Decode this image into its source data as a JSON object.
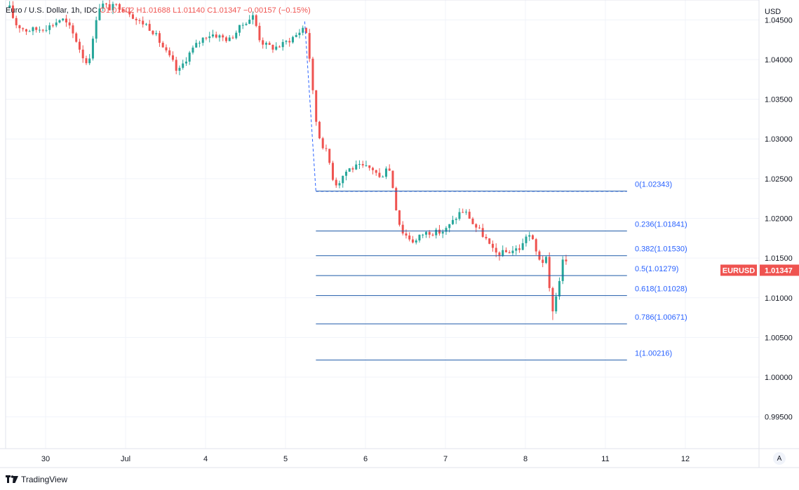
{
  "header": {
    "symbol": "Euro / U.S. Dollar, 1h, IDC",
    "open": "O1.01502",
    "high": "H1.01688",
    "low": "L1.01140",
    "close": "C1.01347",
    "change": "−0.00157 (−0.15%)"
  },
  "footer": {
    "brand": "TradingView"
  },
  "controls": {
    "auto_label": "A"
  },
  "colors": {
    "up": "#26a69a",
    "down": "#ef5350",
    "fib": "#1e5aa8",
    "fib_label": "#2962ff",
    "grid": "#f0f3fa",
    "price_tag": "#ef5350"
  },
  "chart_data": {
    "type": "candlestick",
    "title": "Euro / U.S. Dollar, 1h, IDC",
    "currency_label": "USD",
    "ylim": [
      0.991,
      1.0475
    ],
    "y_ticks": [
      0.995,
      1.0,
      1.005,
      1.01,
      1.015,
      1.02,
      1.025,
      1.03,
      1.035,
      1.04,
      1.045
    ],
    "y_tick_labels": [
      "0.99500",
      "1.00000",
      "1.00500",
      "1.01000",
      "1.01500",
      "1.02000",
      "1.02500",
      "1.03000",
      "1.03500",
      "1.04000",
      "1.04500"
    ],
    "x_ticks": [
      {
        "label": "30",
        "day": 0.5
      },
      {
        "label": "Jul",
        "day": 1.5
      },
      {
        "label": "4",
        "day": 2.5
      },
      {
        "label": "5",
        "day": 3.5
      },
      {
        "label": "6",
        "day": 4.5
      },
      {
        "label": "7",
        "day": 5.5
      },
      {
        "label": "8",
        "day": 6.5
      },
      {
        "label": "11",
        "day": 7.5
      },
      {
        "label": "12",
        "day": 8.5
      }
    ],
    "grid": true,
    "last_price": {
      "symbol": "EURUSD",
      "value": "1.01347",
      "numeric": 1.01347
    },
    "fibonacci": {
      "start": {
        "day": 3.88,
        "price": 1.0234
      },
      "end": {
        "day": 7.77,
        "price": 1.0234
      },
      "trend_from": {
        "day": 3.74,
        "price": 1.0448
      },
      "levels": [
        {
          "ratio": "0",
          "price": 1.02343,
          "label": "0(1.02343)"
        },
        {
          "ratio": "0.236",
          "price": 1.01841,
          "label": "0.236(1.01841)"
        },
        {
          "ratio": "0.382",
          "price": 1.0153,
          "label": "0.382(1.01530)"
        },
        {
          "ratio": "0.5",
          "price": 1.01279,
          "label": "0.5(1.01279)"
        },
        {
          "ratio": "0.618",
          "price": 1.01028,
          "label": "0.618(1.01028)"
        },
        {
          "ratio": "0.786",
          "price": 1.00671,
          "label": "0.786(1.00671)"
        },
        {
          "ratio": "1",
          "price": 1.00216,
          "label": "1(1.00216)"
        }
      ]
    },
    "price_path": [
      {
        "day": 0.05,
        "price": 1.0465
      },
      {
        "day": 0.12,
        "price": 1.0445
      },
      {
        "day": 0.25,
        "price": 1.0437
      },
      {
        "day": 0.4,
        "price": 1.0438
      },
      {
        "day": 0.55,
        "price": 1.0442
      },
      {
        "day": 0.7,
        "price": 1.0452
      },
      {
        "day": 0.8,
        "price": 1.044
      },
      {
        "day": 0.88,
        "price": 1.0425
      },
      {
        "day": 0.96,
        "price": 1.0405
      },
      {
        "day": 1.02,
        "price": 1.0395
      },
      {
        "day": 1.08,
        "price": 1.0415
      },
      {
        "day": 1.12,
        "price": 1.0445
      },
      {
        "day": 1.15,
        "price": 1.0463
      },
      {
        "day": 1.2,
        "price": 1.047
      },
      {
        "day": 1.3,
        "price": 1.0465
      },
      {
        "day": 1.4,
        "price": 1.0468
      },
      {
        "day": 1.55,
        "price": 1.046
      },
      {
        "day": 1.65,
        "price": 1.0448
      },
      {
        "day": 1.75,
        "price": 1.0445
      },
      {
        "day": 1.85,
        "price": 1.0435
      },
      {
        "day": 2.0,
        "price": 1.041
      },
      {
        "day": 2.1,
        "price": 1.0395
      },
      {
        "day": 2.15,
        "price": 1.0382
      },
      {
        "day": 2.22,
        "price": 1.0395
      },
      {
        "day": 2.3,
        "price": 1.0408
      },
      {
        "day": 2.38,
        "price": 1.0418
      },
      {
        "day": 2.5,
        "price": 1.043
      },
      {
        "day": 2.6,
        "price": 1.0432
      },
      {
        "day": 2.7,
        "price": 1.0428
      },
      {
        "day": 2.8,
        "price": 1.0425
      },
      {
        "day": 2.9,
        "price": 1.0437
      },
      {
        "day": 3.0,
        "price": 1.0448
      },
      {
        "day": 3.1,
        "price": 1.0455
      },
      {
        "day": 3.18,
        "price": 1.0425
      },
      {
        "day": 3.25,
        "price": 1.0418
      },
      {
        "day": 3.35,
        "price": 1.0415
      },
      {
        "day": 3.45,
        "price": 1.0418
      },
      {
        "day": 3.55,
        "price": 1.0425
      },
      {
        "day": 3.65,
        "price": 1.0432
      },
      {
        "day": 3.74,
        "price": 1.0443
      },
      {
        "day": 3.78,
        "price": 1.0425
      },
      {
        "day": 3.82,
        "price": 1.038
      },
      {
        "day": 3.86,
        "price": 1.034
      },
      {
        "day": 3.9,
        "price": 1.031
      },
      {
        "day": 3.95,
        "price": 1.0295
      },
      {
        "day": 4.0,
        "price": 1.0287
      },
      {
        "day": 4.05,
        "price": 1.027
      },
      {
        "day": 4.1,
        "price": 1.0248
      },
      {
        "day": 4.15,
        "price": 1.0242
      },
      {
        "day": 4.2,
        "price": 1.0252
      },
      {
        "day": 4.28,
        "price": 1.0262
      },
      {
        "day": 4.4,
        "price": 1.0265
      },
      {
        "day": 4.5,
        "price": 1.0264
      },
      {
        "day": 4.6,
        "price": 1.0262
      },
      {
        "day": 4.68,
        "price": 1.025
      },
      {
        "day": 4.73,
        "price": 1.0258
      },
      {
        "day": 4.77,
        "price": 1.0268
      },
      {
        "day": 4.82,
        "price": 1.0255
      },
      {
        "day": 4.87,
        "price": 1.022
      },
      {
        "day": 4.92,
        "price": 1.0195
      },
      {
        "day": 4.97,
        "price": 1.0182
      },
      {
        "day": 5.05,
        "price": 1.0175
      },
      {
        "day": 5.12,
        "price": 1.017
      },
      {
        "day": 5.2,
        "price": 1.018
      },
      {
        "day": 5.3,
        "price": 1.0183
      },
      {
        "day": 5.4,
        "price": 1.0182
      },
      {
        "day": 5.5,
        "price": 1.0185
      },
      {
        "day": 5.6,
        "price": 1.0197
      },
      {
        "day": 5.7,
        "price": 1.021
      },
      {
        "day": 5.78,
        "price": 1.0205
      },
      {
        "day": 5.85,
        "price": 1.0192
      },
      {
        "day": 5.92,
        "price": 1.0185
      },
      {
        "day": 6.0,
        "price": 1.0175
      },
      {
        "day": 6.08,
        "price": 1.016
      },
      {
        "day": 6.15,
        "price": 1.0155
      },
      {
        "day": 6.25,
        "price": 1.0157
      },
      {
        "day": 6.35,
        "price": 1.016
      },
      {
        "day": 6.45,
        "price": 1.0163
      },
      {
        "day": 6.52,
        "price": 1.0182
      },
      {
        "day": 6.58,
        "price": 1.0175
      },
      {
        "day": 6.63,
        "price": 1.0158
      },
      {
        "day": 6.7,
        "price": 1.0145
      },
      {
        "day": 6.76,
        "price": 1.0148
      },
      {
        "day": 6.8,
        "price": 1.011
      },
      {
        "day": 6.84,
        "price": 1.0085
      },
      {
        "day": 6.88,
        "price": 1.01
      },
      {
        "day": 6.92,
        "price": 1.012
      },
      {
        "day": 6.96,
        "price": 1.0145
      },
      {
        "day": 7.0,
        "price": 1.015
      },
      {
        "day": 7.03,
        "price": 1.0134
      }
    ],
    "annotated_candles": [
      {
        "day": 6.84,
        "low": 1.0072
      },
      {
        "day": 7.03,
        "high": 1.01688,
        "low": 1.0114
      }
    ]
  }
}
